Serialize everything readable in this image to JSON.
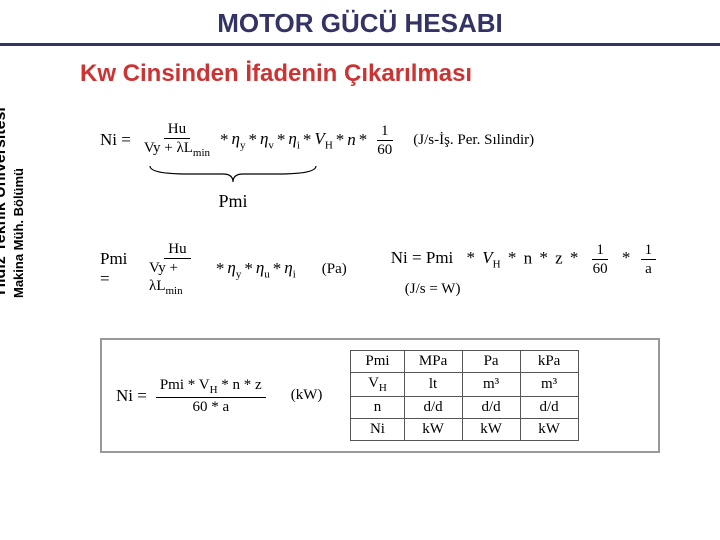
{
  "colors": {
    "rule": "#333366",
    "title": "#333366",
    "subtitle": "#cc3333",
    "body": "#000000",
    "tableBorder": "#555555",
    "boxBorder": "#999999"
  },
  "header": {
    "title": "MOTOR GÜCÜ HESABI"
  },
  "subtitle": "Kw Cinsinden İfadenin Çıkarılması",
  "sidebar": {
    "main": "Yıldız Teknik Üniversitesi",
    "sub": "Makina Müh. Bölümü"
  },
  "eq1": {
    "lhs": "Ni =",
    "frac": {
      "num": "Hu",
      "den": "Vy + λL"
    },
    "den_sub": "min",
    "terms": [
      "η",
      "η",
      "η",
      "V",
      "n"
    ],
    "term_subs": [
      "y",
      "v",
      "i",
      "H",
      ""
    ],
    "tail_frac": {
      "num": "1",
      "den": "60"
    },
    "note": "(J/s-İş. Per. Sılindir)"
  },
  "brace": {
    "label": "Pmi"
  },
  "eq2a": {
    "lhs": "Pmi =",
    "frac": {
      "num": "Hu",
      "den": "Vy + λL"
    },
    "den_sub": "min",
    "terms": [
      "η",
      "η",
      "η"
    ],
    "term_subs": [
      "y",
      "u",
      "i"
    ],
    "note": "(Pa)"
  },
  "eq2b": {
    "lhs": "Ni = Pmi",
    "terms": [
      "V",
      "n",
      "z"
    ],
    "term_subs": [
      "H",
      "",
      ""
    ],
    "tail_fracs": [
      {
        "num": "1",
        "den": "60"
      },
      {
        "num": "1",
        "den": "a"
      }
    ],
    "note": "(J/s = W)"
  },
  "boxed": {
    "lhs": "Ni =",
    "frac": {
      "num": "Pmi * V",
      "num_sub": "H",
      "num_tail": " * n * z",
      "den": "60 * a"
    },
    "note": "(kW)"
  },
  "unitTable": {
    "rows": [
      [
        "Pmi",
        "MPa",
        "Pa",
        "kPa"
      ],
      [
        "V_H",
        "lt",
        "m³",
        "m³"
      ],
      [
        "n",
        "d/d",
        "d/d",
        "d/d"
      ],
      [
        "Ni",
        "kW",
        "kW",
        "kW"
      ]
    ]
  }
}
